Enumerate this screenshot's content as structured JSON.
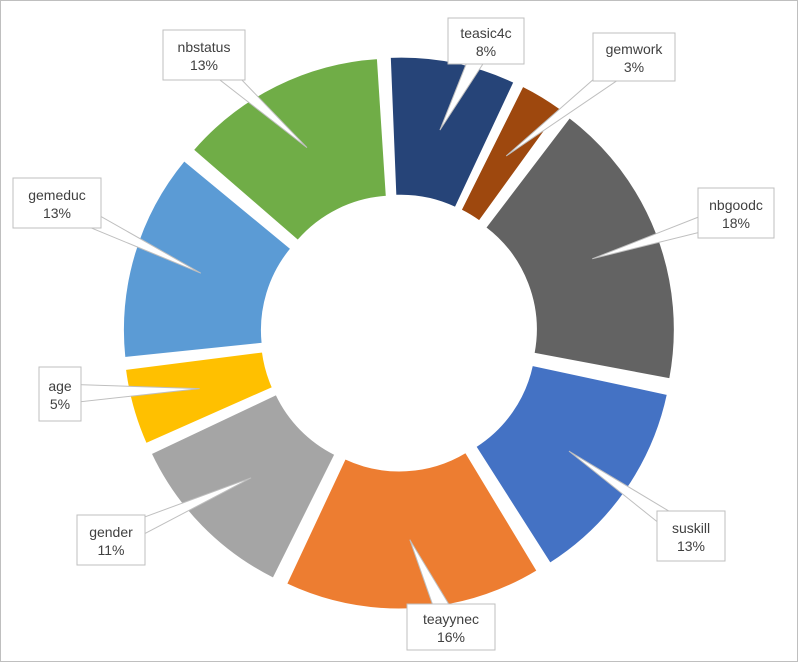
{
  "chart_data": {
    "type": "pie",
    "variant": "doughnut",
    "title": "",
    "legend": "none",
    "data_labels": "callouts showing category and percentage",
    "slices": [
      {
        "label": "teasic4c",
        "value": 8,
        "value_label": "8%",
        "color": "#264478"
      },
      {
        "label": "gemwork",
        "value": 3,
        "value_label": "3%",
        "color": "#9E480E"
      },
      {
        "label": "nbgoodc",
        "value": 18,
        "value_label": "18%",
        "color": "#636363"
      },
      {
        "label": "suskill",
        "value": 13,
        "value_label": "13%",
        "color": "#4472C4"
      },
      {
        "label": "teayynec",
        "value": 16,
        "value_label": "16%",
        "color": "#ED7D31"
      },
      {
        "label": "gender",
        "value": 11,
        "value_label": "11%",
        "color": "#A5A5A5"
      },
      {
        "label": "age",
        "value": 5,
        "value_label": "5%",
        "color": "#FFC000"
      },
      {
        "label": "gemeduc",
        "value": 13,
        "value_label": "13%",
        "color": "#5B9BD5"
      },
      {
        "label": "nbstatus",
        "value": 13,
        "value_label": "13%",
        "color": "#70AD47"
      }
    ]
  }
}
